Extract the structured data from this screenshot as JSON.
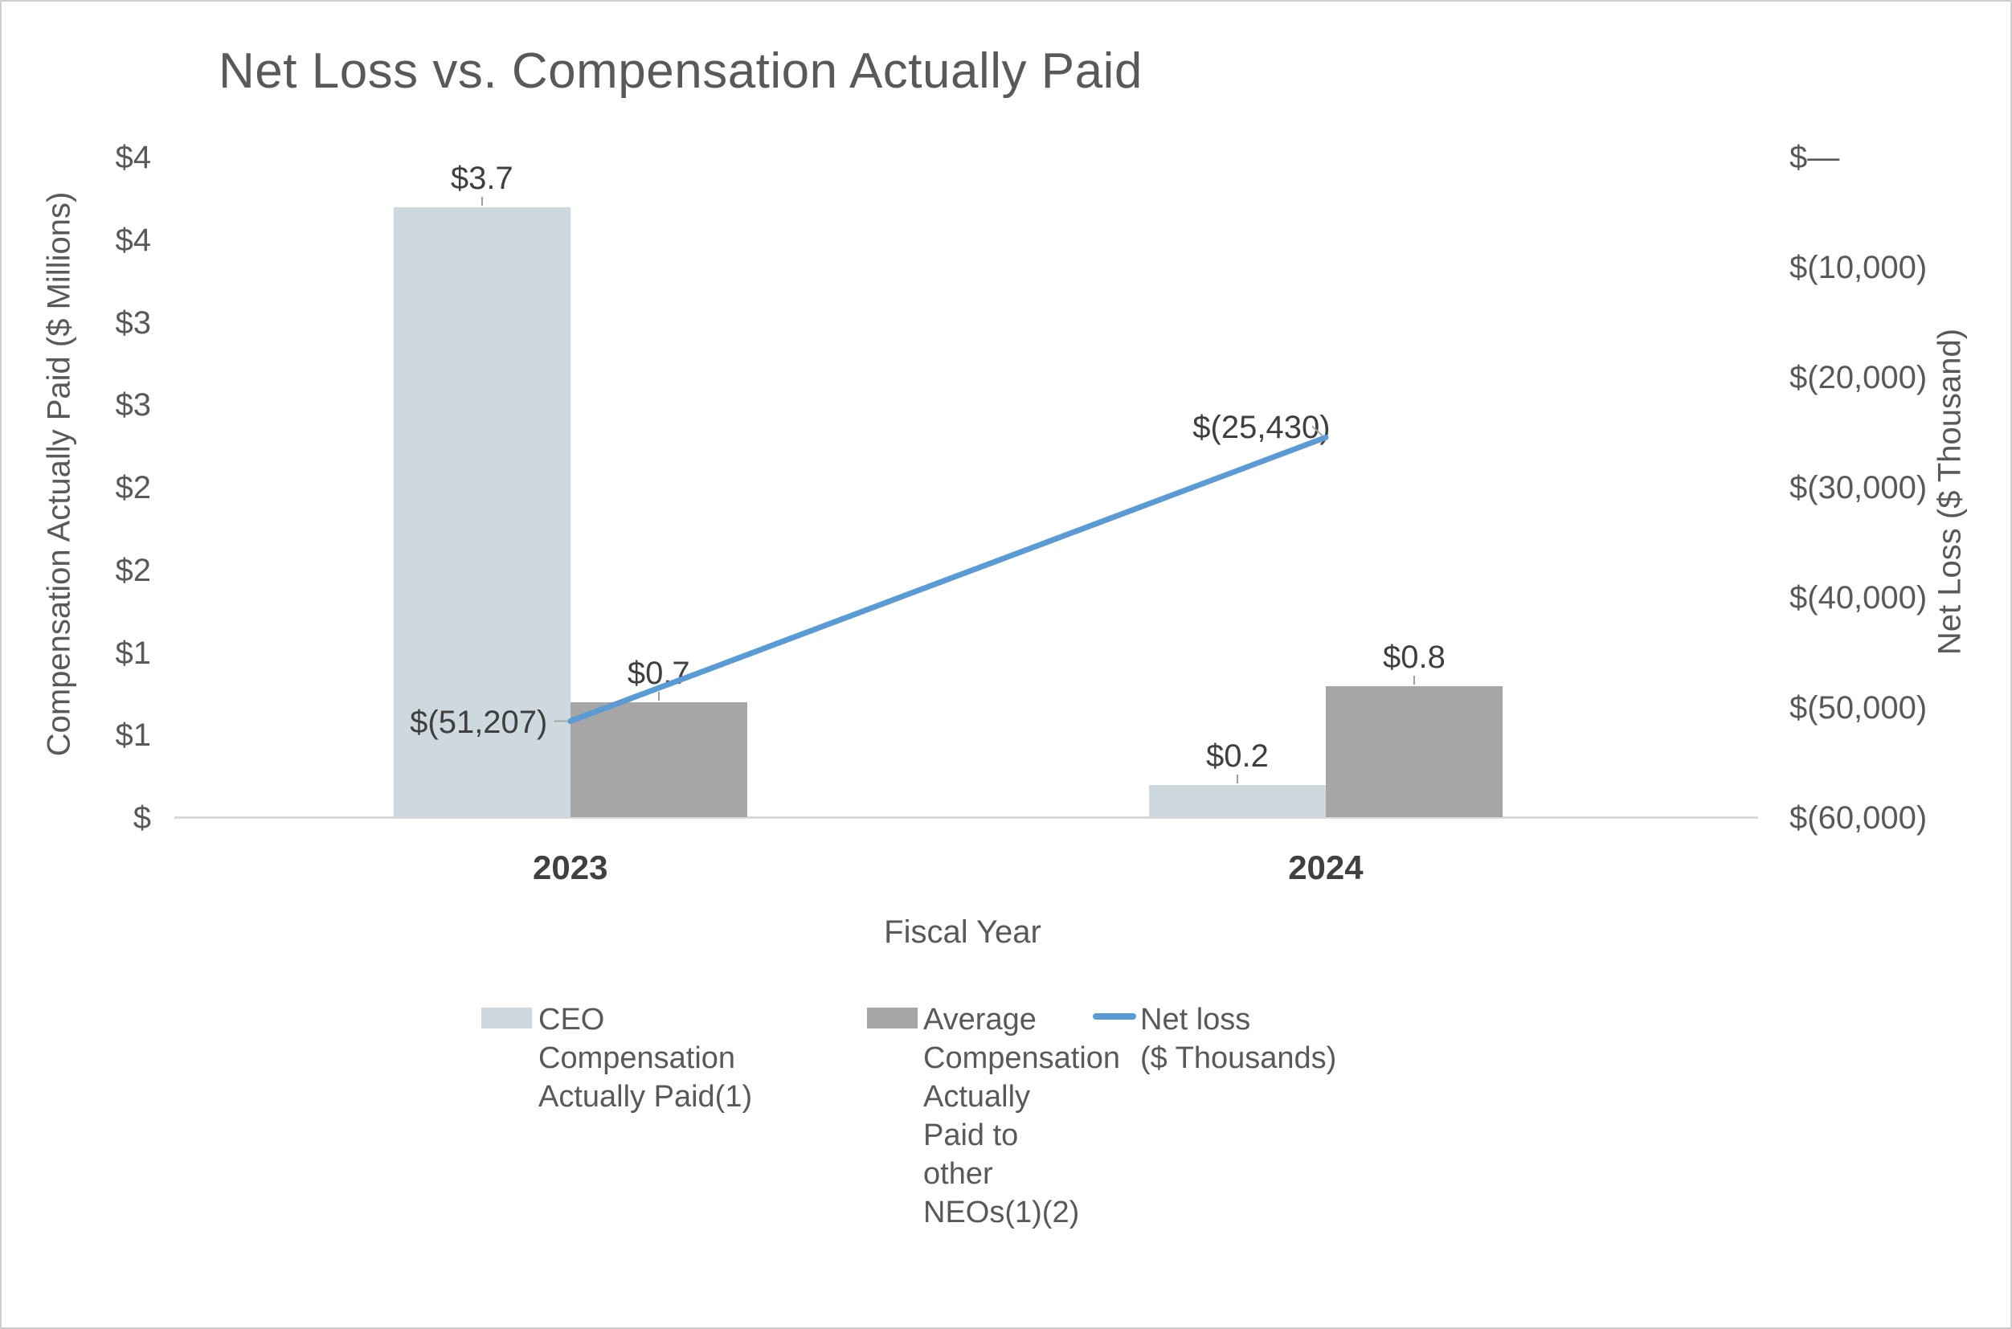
{
  "chart_data": {
    "type": "bar",
    "subtype": "clustered-bar-with-line-combo",
    "title": "Net Loss vs. Compensation Actually Paid",
    "categories": [
      "2023",
      "2024"
    ],
    "series": [
      {
        "type": "bar",
        "name": "CEO Compensation Actually Paid(1)",
        "axis": "left",
        "color": "#cdd9de",
        "values": [
          3.7,
          0.2
        ],
        "labels": [
          "$3.7",
          "$0.2"
        ]
      },
      {
        "type": "bar",
        "name": "Average Compensation Actually Paid to other NEOs(1)(2)",
        "axis": "left",
        "color": "#a6a6a6",
        "values": [
          0.7,
          0.8
        ],
        "labels": [
          "$0.7",
          "$0.8"
        ]
      },
      {
        "type": "line",
        "name": "Net loss ($ Thousands)",
        "axis": "right",
        "color": "#5b9bd5",
        "values": [
          -51207,
          -25430
        ],
        "labels": [
          "$(51,207)",
          "$(25,430)"
        ]
      }
    ],
    "left_axis": {
      "title": "Compensation Actually Paid ($ Millions)",
      "min": 0,
      "max": 4,
      "tick_step": 0.5,
      "tick_labels": [
        "$4",
        "$4",
        "$3",
        "$3",
        "$2",
        "$2",
        "$1",
        "$1",
        "$"
      ]
    },
    "right_axis": {
      "title": "Net Loss ($ Thousand)",
      "min": -60000,
      "max": 0,
      "tick_step": 10000,
      "tick_labels": [
        "$—",
        "$(10,000)",
        "$(20,000)",
        "$(30,000)",
        "$(40,000)",
        "$(50,000)",
        "$(60,000)"
      ]
    },
    "x_axis": {
      "title": "Fiscal Year",
      "tick_labels": [
        "2023",
        "2024"
      ]
    },
    "legend": {
      "position": "bottom",
      "items": [
        {
          "swatch": "bar",
          "color": "#cdd9de",
          "label": "CEO\nCompensation\nActually Paid(1)"
        },
        {
          "swatch": "bar",
          "color": "#a6a6a6",
          "label": "Average\nCompensation\nActually\nPaid to\nother\nNEOs(1)(2)"
        },
        {
          "swatch": "line",
          "color": "#5b9bd5",
          "label": "Net loss\n($ Thousands)"
        }
      ]
    },
    "grid": "off",
    "style": {
      "axis_line_color": "#d9d9d9",
      "text_color": "#595959",
      "data_label_color": "#3f3f3f"
    }
  }
}
